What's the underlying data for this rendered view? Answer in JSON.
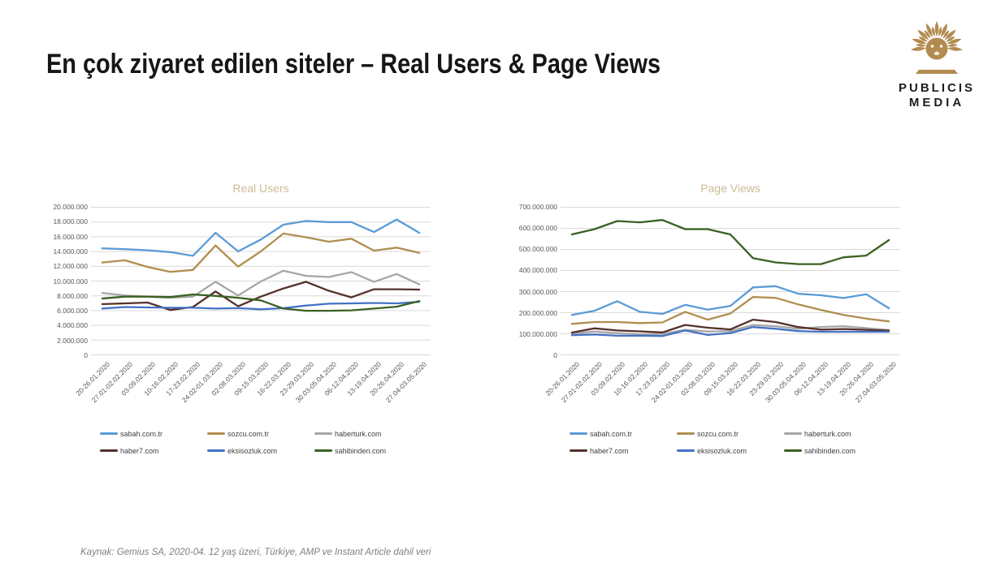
{
  "slide": {
    "title": "En çok ziyaret edilen siteler – Real Users & Page Views",
    "footer": "Kaynak: Gemius SA, 2020-04. 12 yaş üzeri, Türkiye, AMP ve Instant Article dahil veri"
  },
  "logo": {
    "line1": "PUBLICIS",
    "line2": "MEDIA",
    "lion_color": "#B28B50",
    "text_color": "#1E1E1E"
  },
  "colors": {
    "gridline": "#D9D9D9",
    "axis_text": "#595959",
    "chart_title": "#CBBC96",
    "legend_text": "#404040",
    "title_text": "#161616",
    "footer_text": "#7F7F7F"
  },
  "chart_data": [
    {
      "type": "line",
      "title": "Real Users",
      "grid": true,
      "legend_position": "bottom",
      "ylim": [
        0,
        20000000
      ],
      "y_step": 2000000,
      "y_ticks": [
        "20.000.000",
        "18.000.000",
        "16.000.000",
        "14.000.000",
        "12.000.000",
        "10.000.000",
        "8.000.000",
        "6.000.000",
        "4.000.000",
        "2.000.000",
        "0"
      ],
      "categories": [
        "20-26.01.2020",
        "27.01-02.02.2020",
        "03-09.02.2020",
        "10-16.02.2020",
        "17-23.02.2020",
        "24.02-01.03.2020",
        "02-08.03.2020",
        "09-15.03.2020",
        "16-22.03.2020",
        "23-29.03.2020",
        "30.03-05.04.2020",
        "06-12.04.2020",
        "13-19.04.2020",
        "20-26.04.2020",
        "27.04-03.05.2020"
      ],
      "series": [
        {
          "name": "sabah.com.tr",
          "color": "#5B9BD5",
          "values": [
            14400000,
            14300000,
            14150000,
            13900000,
            13400000,
            16500000,
            14000000,
            15600000,
            17600000,
            18100000,
            17950000,
            17950000,
            16600000,
            18300000,
            16500000
          ]
        },
        {
          "name": "sozcu.com.tr",
          "color": "#B08E4F",
          "values": [
            12500000,
            12800000,
            11900000,
            11250000,
            11500000,
            14800000,
            11950000,
            14000000,
            16400000,
            15900000,
            15300000,
            15700000,
            14100000,
            14500000,
            13800000
          ]
        },
        {
          "name": "haberturk.com",
          "color": "#A6A6A6",
          "values": [
            8400000,
            8050000,
            7900000,
            7750000,
            7900000,
            9900000,
            8050000,
            9950000,
            11400000,
            10700000,
            10550000,
            11200000,
            9900000,
            10950000,
            9550000
          ]
        },
        {
          "name": "haber7.com",
          "color": "#55302B",
          "values": [
            6900000,
            7000000,
            7100000,
            6100000,
            6500000,
            8600000,
            6600000,
            7900000,
            9000000,
            9900000,
            8700000,
            7800000,
            8900000,
            8900000,
            8850000
          ]
        },
        {
          "name": "eksisozluk.com",
          "color": "#4472C4",
          "values": [
            6300000,
            6500000,
            6450000,
            6400000,
            6400000,
            6300000,
            6350000,
            6200000,
            6350000,
            6700000,
            6950000,
            7000000,
            7050000,
            7000000,
            7200000
          ]
        },
        {
          "name": "sahibinden.com",
          "color": "#3A6122",
          "values": [
            7650000,
            7900000,
            7900000,
            7850000,
            8200000,
            8000000,
            7750000,
            7400000,
            6300000,
            6000000,
            6000000,
            6050000,
            6300000,
            6550000,
            7300000
          ]
        }
      ]
    },
    {
      "type": "line",
      "title": "Page Views",
      "grid": true,
      "legend_position": "bottom",
      "ylim": [
        0,
        700000000
      ],
      "y_step": 100000000,
      "y_ticks": [
        "700.000.000",
        "600.000.000",
        "500.000.000",
        "400.000.000",
        "300.000.000",
        "200.000.000",
        "100.000.000",
        "0"
      ],
      "categories": [
        "20-26.01.2020",
        "27.01-02.02.2020",
        "03-09.02.2020",
        "10-16.02.2020",
        "17-23.02.2020",
        "24.02-01.03.2020",
        "02-08.03.2020",
        "09-15.03.2020",
        "16-22.03.2020",
        "23-29.03.2020",
        "30.03-05.04.2020",
        "06-12.04.2020",
        "13-19.04.2020",
        "20-26.04.2020",
        "27.04-03.05.2020"
      ],
      "series": [
        {
          "name": "sabah.com.tr",
          "color": "#5B9BD5",
          "values": [
            190000000,
            210000000,
            255000000,
            205000000,
            195000000,
            238000000,
            215000000,
            233000000,
            320000000,
            326000000,
            290000000,
            283000000,
            270000000,
            288000000,
            222000000
          ]
        },
        {
          "name": "sozcu.com.tr",
          "color": "#B08E4F",
          "values": [
            148000000,
            157000000,
            157000000,
            152000000,
            155000000,
            205000000,
            168000000,
            197000000,
            275000000,
            271000000,
            240000000,
            214000000,
            190000000,
            173000000,
            160000000
          ]
        },
        {
          "name": "haberturk.com",
          "color": "#A6A6A6",
          "values": [
            103000000,
            112000000,
            104000000,
            99000000,
            101000000,
            120000000,
            112000000,
            114000000,
            143000000,
            137000000,
            125000000,
            133000000,
            137000000,
            128000000,
            119000000
          ]
        },
        {
          "name": "haber7.com",
          "color": "#55302B",
          "values": [
            107000000,
            127000000,
            117000000,
            113000000,
            108000000,
            143000000,
            130000000,
            122000000,
            168000000,
            157000000,
            133000000,
            121000000,
            124000000,
            120000000,
            116000000
          ]
        },
        {
          "name": "eksisozluk.com",
          "color": "#4472C4",
          "values": [
            95000000,
            98000000,
            92000000,
            92000000,
            91000000,
            117000000,
            96000000,
            105000000,
            133000000,
            125000000,
            114000000,
            111000000,
            111000000,
            111000000,
            111000000
          ]
        },
        {
          "name": "sahibinden.com",
          "color": "#3A6122",
          "values": [
            570000000,
            595000000,
            633000000,
            627000000,
            638000000,
            595000000,
            595000000,
            570000000,
            458000000,
            438000000,
            430000000,
            430000000,
            462000000,
            470000000,
            543000000
          ]
        }
      ]
    }
  ]
}
